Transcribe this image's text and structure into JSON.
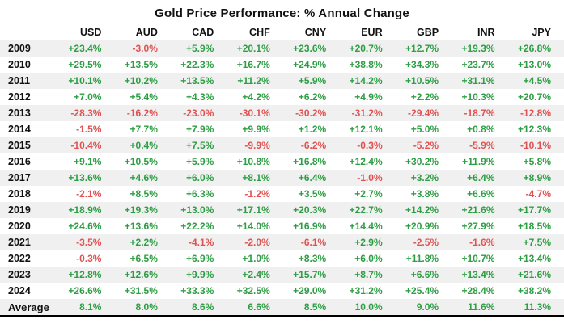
{
  "title": "Gold Price Performance: % Annual Change",
  "colors": {
    "positive": "#2e9e44",
    "negative": "#e05252",
    "text": "#111111",
    "stripe": "#f0f0f0"
  },
  "chart_data": {
    "type": "table",
    "title": "Gold Price Performance: % Annual Change",
    "columns": [
      "USD",
      "AUD",
      "CAD",
      "CHF",
      "CNY",
      "EUR",
      "GBP",
      "INR",
      "JPY"
    ],
    "rows": [
      {
        "label": "2009",
        "values": [
          "+23.4%",
          "-3.0%",
          "+5.9%",
          "+20.1%",
          "+23.6%",
          "+20.7%",
          "+12.7%",
          "+19.3%",
          "+26.8%"
        ]
      },
      {
        "label": "2010",
        "values": [
          "+29.5%",
          "+13.5%",
          "+22.3%",
          "+16.7%",
          "+24.9%",
          "+38.8%",
          "+34.3%",
          "+23.7%",
          "+13.0%"
        ]
      },
      {
        "label": "2011",
        "values": [
          "+10.1%",
          "+10.2%",
          "+13.5%",
          "+11.2%",
          "+5.9%",
          "+14.2%",
          "+10.5%",
          "+31.1%",
          "+4.5%"
        ]
      },
      {
        "label": "2012",
        "values": [
          "+7.0%",
          "+5.4%",
          "+4.3%",
          "+4.2%",
          "+6.2%",
          "+4.9%",
          "+2.2%",
          "+10.3%",
          "+20.7%"
        ]
      },
      {
        "label": "2013",
        "values": [
          "-28.3%",
          "-16.2%",
          "-23.0%",
          "-30.1%",
          "-30.2%",
          "-31.2%",
          "-29.4%",
          "-18.7%",
          "-12.8%"
        ]
      },
      {
        "label": "2014",
        "values": [
          "-1.5%",
          "+7.7%",
          "+7.9%",
          "+9.9%",
          "+1.2%",
          "+12.1%",
          "+5.0%",
          "+0.8%",
          "+12.3%"
        ]
      },
      {
        "label": "2015",
        "values": [
          "-10.4%",
          "+0.4%",
          "+7.5%",
          "-9.9%",
          "-6.2%",
          "-0.3%",
          "-5.2%",
          "-5.9%",
          "-10.1%"
        ]
      },
      {
        "label": "2016",
        "values": [
          "+9.1%",
          "+10.5%",
          "+5.9%",
          "+10.8%",
          "+16.8%",
          "+12.4%",
          "+30.2%",
          "+11.9%",
          "+5.8%"
        ]
      },
      {
        "label": "2017",
        "values": [
          "+13.6%",
          "+4.6%",
          "+6.0%",
          "+8.1%",
          "+6.4%",
          "-1.0%",
          "+3.2%",
          "+6.4%",
          "+8.9%"
        ]
      },
      {
        "label": "2018",
        "values": [
          "-2.1%",
          "+8.5%",
          "+6.3%",
          "-1.2%",
          "+3.5%",
          "+2.7%",
          "+3.8%",
          "+6.6%",
          "-4.7%"
        ]
      },
      {
        "label": "2019",
        "values": [
          "+18.9%",
          "+19.3%",
          "+13.0%",
          "+17.1%",
          "+20.3%",
          "+22.7%",
          "+14.2%",
          "+21.6%",
          "+17.7%"
        ]
      },
      {
        "label": "2020",
        "values": [
          "+24.6%",
          "+13.6%",
          "+22.2%",
          "+14.0%",
          "+16.9%",
          "+14.4%",
          "+20.9%",
          "+27.9%",
          "+18.5%"
        ]
      },
      {
        "label": "2021",
        "values": [
          "-3.5%",
          "+2.2%",
          "-4.1%",
          "-2.0%",
          "-6.1%",
          "+2.9%",
          "-2.5%",
          "-1.6%",
          "+7.5%"
        ]
      },
      {
        "label": "2022",
        "values": [
          "-0.3%",
          "+6.5%",
          "+6.9%",
          "+1.0%",
          "+8.3%",
          "+6.0%",
          "+11.8%",
          "+10.7%",
          "+13.4%"
        ]
      },
      {
        "label": "2023",
        "values": [
          "+12.8%",
          "+12.6%",
          "+9.9%",
          "+2.4%",
          "+15.7%",
          "+8.7%",
          "+6.6%",
          "+13.4%",
          "+21.6%"
        ]
      },
      {
        "label": "2024",
        "values": [
          "+26.6%",
          "+31.5%",
          "+33.3%",
          "+32.5%",
          "+29.0%",
          "+31.2%",
          "+25.4%",
          "+28.4%",
          "+38.2%"
        ]
      },
      {
        "label": "Average",
        "values": [
          "8.1%",
          "8.0%",
          "8.6%",
          "6.6%",
          "8.5%",
          "10.0%",
          "9.0%",
          "11.6%",
          "11.3%"
        ]
      }
    ]
  }
}
